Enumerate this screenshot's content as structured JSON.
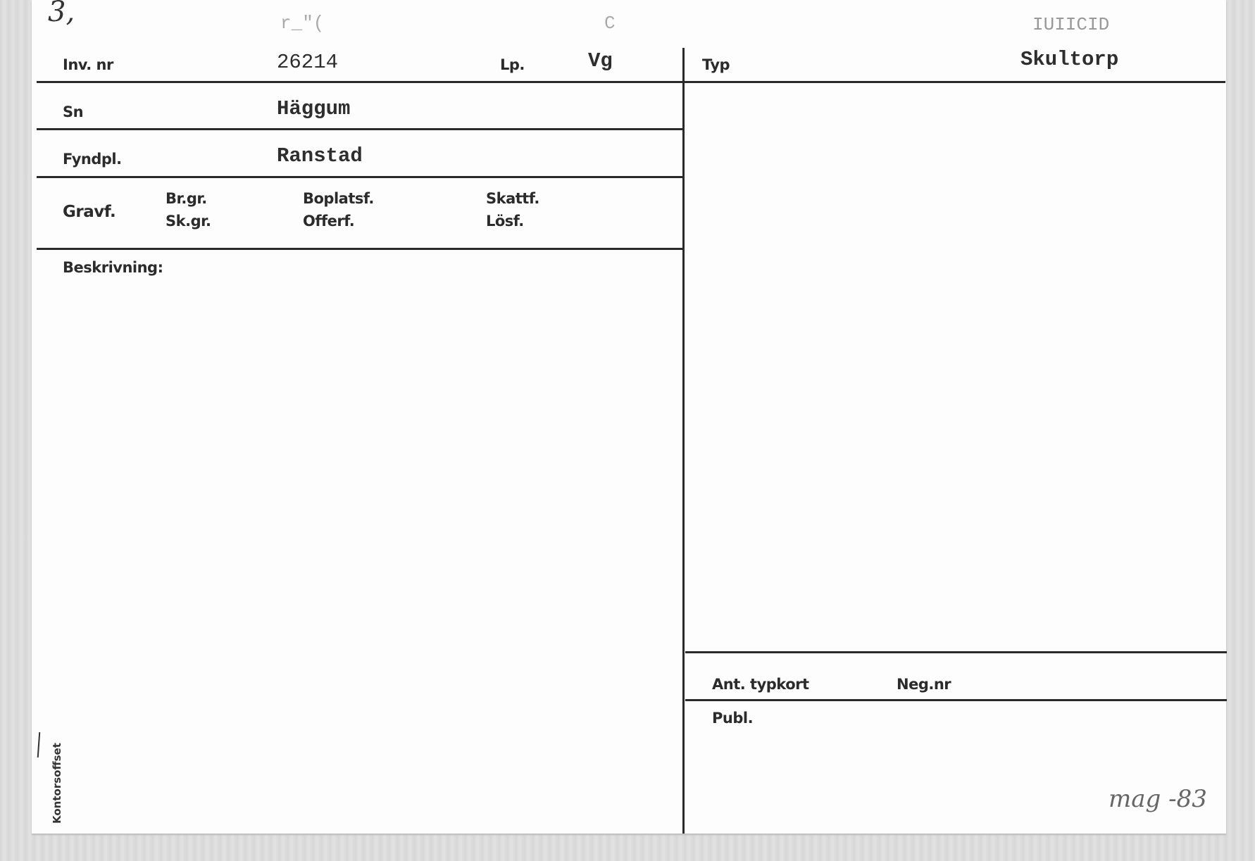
{
  "card": {
    "corner_note": "3,",
    "faded_marks": {
      "top_center": "r_\"(",
      "top_mid": "C",
      "top_right": "IUIICID"
    },
    "inv_nr": {
      "label": "Inv. nr",
      "value": "26214"
    },
    "lp": {
      "label": "Lp.",
      "value": "Vg"
    },
    "typ": {
      "label": "Typ",
      "value": "Skultorp"
    },
    "sn": {
      "label": "Sn",
      "value": "Häggum"
    },
    "fyndpl": {
      "label": "Fyndpl.",
      "value": "Ranstad"
    },
    "find_types": {
      "gravf": "Gravf.",
      "br_gr": "Br.gr.",
      "sk_gr": "Sk.gr.",
      "boplatsf": "Boplatsf.",
      "offerf": "Offerf.",
      "skattf": "Skattf.",
      "losf": "Lösf."
    },
    "beskrivning": {
      "label": "Beskrivning:"
    },
    "ant_typkort": {
      "label": "Ant. typkort"
    },
    "neg_nr": {
      "label": "Neg.nr"
    },
    "publ": {
      "label": "Publ."
    },
    "printer": "Kontorsoffset",
    "handwritten_note": "mag -83"
  }
}
